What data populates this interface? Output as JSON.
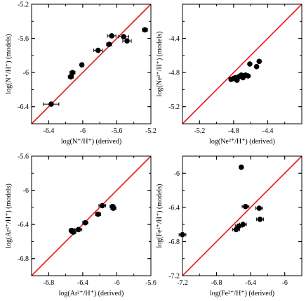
{
  "chart_data": [
    {
      "type": "scatter",
      "xlabel": "log(N⁺/H⁺) (derived)",
      "ylabel": "log(N⁺/H⁺) (models)",
      "xlim": [
        -6.6,
        -5.2
      ],
      "ylim": [
        -6.6,
        -5.2
      ],
      "xticks": [
        -6.4,
        -6.0,
        -5.6,
        -5.2
      ],
      "xtick_labels": [
        "-6.4",
        "-6",
        "-5.6",
        "-5.2"
      ],
      "yticks": [
        -6.4,
        -6.0,
        -5.6,
        -5.2
      ],
      "ytick_labels": [
        "-6.4",
        "-6",
        "-5.6",
        "-5.2"
      ],
      "identity_line": true,
      "points": [
        {
          "x": -6.37,
          "y": -6.37,
          "xerr": 0.09
        },
        {
          "x": -6.12,
          "y": -6.0,
          "xerr": 0.03
        },
        {
          "x": -6.14,
          "y": -6.05,
          "xerr": 0.03
        },
        {
          "x": -6.01,
          "y": -5.91,
          "xerr": 0.02
        },
        {
          "x": -5.82,
          "y": -5.74,
          "xerr": 0.05
        },
        {
          "x": -5.69,
          "y": -5.67,
          "xerr": 0.03
        },
        {
          "x": -5.66,
          "y": -5.57,
          "xerr": 0.05
        },
        {
          "x": -5.52,
          "y": -5.58,
          "xerr": 0.06
        },
        {
          "x": -5.48,
          "y": -5.63,
          "xerr": 0.05
        },
        {
          "x": -5.27,
          "y": -5.5,
          "xerr": 0.03
        }
      ]
    },
    {
      "type": "scatter",
      "xlabel": "log(Ne²⁺/H⁺) (derived)",
      "ylabel": "log(Ne²⁺/H⁺) (models)",
      "xlim": [
        -5.4,
        -4.0
      ],
      "ylim": [
        -5.4,
        -4.0
      ],
      "xticks": [
        -5.2,
        -4.8,
        -4.4
      ],
      "xtick_labels": [
        "-5.2",
        "-4.8",
        "-4.4"
      ],
      "yticks": [
        -5.2,
        -4.8,
        -4.4
      ],
      "ytick_labels": [
        "-5.2",
        "-4.8",
        "-4.4"
      ],
      "identity_line": true,
      "points": [
        {
          "x": -4.83,
          "y": -4.88,
          "xerr": 0.02
        },
        {
          "x": -4.8,
          "y": -4.87,
          "xerr": 0.02
        },
        {
          "x": -4.78,
          "y": -4.86,
          "xerr": 0.03
        },
        {
          "x": -4.76,
          "y": -4.89,
          "xerr": 0.02
        },
        {
          "x": -4.74,
          "y": -4.85,
          "xerr": 0.02
        },
        {
          "x": -4.71,
          "y": -4.83,
          "xerr": 0.02
        },
        {
          "x": -4.69,
          "y": -4.86,
          "xerr": 0.02
        },
        {
          "x": -4.66,
          "y": -4.83,
          "xerr": 0.02
        },
        {
          "x": -4.63,
          "y": -4.84,
          "xerr": 0.02
        },
        {
          "x": -4.61,
          "y": -4.7,
          "xerr": 0.02
        },
        {
          "x": -4.53,
          "y": -4.73,
          "xerr": 0.02
        },
        {
          "x": -4.5,
          "y": -4.67,
          "xerr": 0.02
        }
      ]
    },
    {
      "type": "scatter",
      "xlabel": "log(Ar²⁺/H⁺) (derived)",
      "ylabel": "log(Ar²⁺/H⁺) (models)",
      "xlim": [
        -7.0,
        -5.6
      ],
      "ylim": [
        -7.0,
        -5.6
      ],
      "xticks": [
        -6.8,
        -6.4,
        -6.0,
        -5.6
      ],
      "xtick_labels": [
        "-6.8",
        "-6.4",
        "-6",
        "-5.6"
      ],
      "yticks": [
        -6.8,
        -6.4,
        -6.0,
        -5.6
      ],
      "ytick_labels": [
        "-6.8",
        "-6.4",
        "-6",
        "-5.6"
      ],
      "identity_line": true,
      "points": [
        {
          "x": -6.53,
          "y": -6.47,
          "xerr": 0.03
        },
        {
          "x": -6.52,
          "y": -6.48,
          "xerr": 0.03
        },
        {
          "x": -6.51,
          "y": -6.49,
          "xerr": 0.03
        },
        {
          "x": -6.45,
          "y": -6.46,
          "xerr": 0.04
        },
        {
          "x": -6.37,
          "y": -6.38,
          "xerr": 0.03
        },
        {
          "x": -6.22,
          "y": -6.28,
          "xerr": 0.03
        },
        {
          "x": -6.17,
          "y": -6.18,
          "xerr": 0.04
        },
        {
          "x": -6.05,
          "y": -6.19,
          "xerr": 0.03
        },
        {
          "x": -6.04,
          "y": -6.21,
          "xerr": 0.03
        }
      ]
    },
    {
      "type": "scatter",
      "xlabel": "log(Fe²⁺/H⁺) (derived)",
      "ylabel": "log(Fe²⁺/H⁺) (models)",
      "xlim": [
        -7.2,
        -5.8
      ],
      "ylim": [
        -7.2,
        -5.8
      ],
      "xticks": [
        -7.2,
        -6.8,
        -6.4,
        -6.0
      ],
      "xtick_labels": [
        "-7.2",
        "-6.8",
        "-6.4",
        "-6"
      ],
      "yticks": [
        -7.2,
        -6.8,
        -6.4,
        -6.0
      ],
      "ytick_labels": [
        "-7.2",
        "-6.8",
        "-6.4",
        "-6"
      ],
      "identity_line": true,
      "points": [
        {
          "x": -7.2,
          "y": -6.72,
          "xerr": 0.04
        },
        {
          "x": -6.57,
          "y": -6.66,
          "xerr": 0.04
        },
        {
          "x": -6.54,
          "y": -6.62,
          "xerr": 0.04
        },
        {
          "x": -6.49,
          "y": -6.6,
          "xerr": 0.04
        },
        {
          "x": -6.46,
          "y": -6.39,
          "xerr": 0.04
        },
        {
          "x": -6.3,
          "y": -6.41,
          "xerr": 0.04
        },
        {
          "x": -6.29,
          "y": -6.54,
          "xerr": 0.04
        },
        {
          "x": -6.51,
          "y": -5.93,
          "xerr": 0.0
        }
      ]
    }
  ],
  "colors": {
    "identity_line": "#e41a1c",
    "points": "#000000",
    "frame": "#000000"
  }
}
